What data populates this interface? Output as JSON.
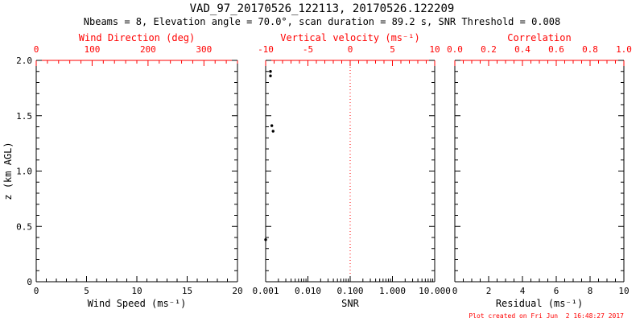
{
  "header": {
    "title": "VAD_97_20170526_122113, 20170526.122209",
    "subtitle": "Nbeams = 8, Elevation angle = 70.0°, scan duration = 89.2 s, SNR Threshold = 0.008"
  },
  "footer": {
    "created": "Plot created on Fri Jun  2 16:48:27 2017"
  },
  "colors": {
    "axis": "#000000",
    "top_axis": "#ff0000",
    "background": "#ffffff",
    "points": "#000000",
    "ref_line": "#ff0000"
  },
  "chart_data": [
    {
      "type": "scatter",
      "panel": "wind-speed",
      "xlabel": "Wind Speed (ms⁻¹)",
      "xlim": [
        0,
        20
      ],
      "xticks": [
        0,
        5,
        10,
        15,
        20
      ],
      "xtick_labels": [
        "0",
        "5",
        "10",
        "15",
        "20"
      ],
      "xminor_step": 1,
      "top_label": "Wind Direction (deg)",
      "top_xlim": [
        0,
        360
      ],
      "top_ticks": [
        0,
        100,
        200,
        300
      ],
      "top_tick_labels": [
        "0",
        "100",
        "200",
        "300"
      ],
      "top_minor_step": 20,
      "ylabel": "z (km AGL)",
      "ylim": [
        0,
        2.0
      ],
      "yticks": [
        0,
        0.5,
        1.0,
        1.5,
        2.0
      ],
      "ytick_labels": [
        "0",
        "0.5",
        "1.0",
        "1.5",
        "2.0"
      ],
      "yminor_step": 0.1,
      "grid": false,
      "points": []
    },
    {
      "type": "scatter",
      "panel": "snr",
      "xlabel": "SNR",
      "xscale": "log",
      "xlim": [
        0.001,
        10
      ],
      "xticks": [
        0.001,
        0.01,
        0.1,
        1,
        10
      ],
      "xtick_labels": [
        "0.001",
        "0.010",
        "0.100",
        "1.000",
        "10.000"
      ],
      "top_label": "Vertical velocity (ms⁻¹)",
      "top_xlim": [
        -10,
        10
      ],
      "top_ticks": [
        -10,
        -5,
        0,
        5,
        10
      ],
      "top_tick_labels": [
        "-10",
        "-5",
        "0",
        "5",
        "10"
      ],
      "top_minor_step": 1,
      "ylim": [
        0,
        2.0
      ],
      "yticks": [
        0,
        0.5,
        1.0,
        1.5,
        2.0
      ],
      "yminor_step": 0.1,
      "ref_line_x": 0.1,
      "ref_line_meaning": "vertical velocity = 0",
      "grid": false,
      "points": [
        {
          "x": 0.0013,
          "y": 1.9
        },
        {
          "x": 0.0013,
          "y": 1.86
        },
        {
          "x": 0.0014,
          "y": 1.41
        },
        {
          "x": 0.0015,
          "y": 1.36
        },
        {
          "x": 0.001,
          "y": 0.38
        }
      ]
    },
    {
      "type": "scatter",
      "panel": "residual",
      "xlabel": "Residual (ms⁻¹)",
      "xlim": [
        0,
        10
      ],
      "xticks": [
        0,
        2,
        4,
        6,
        8,
        10
      ],
      "xtick_labels": [
        "0",
        "2",
        "4",
        "6",
        "8",
        "10"
      ],
      "xminor_step": 0.5,
      "top_label": "Correlation",
      "top_xlim": [
        0.0,
        1.0
      ],
      "top_ticks": [
        0.0,
        0.2,
        0.4,
        0.6,
        0.8,
        1.0
      ],
      "top_tick_labels": [
        "0.0",
        "0.2",
        "0.4",
        "0.6",
        "0.8",
        "1.0"
      ],
      "top_minor_step": 0.05,
      "ylim": [
        0,
        2.0
      ],
      "yticks": [
        0,
        0.5,
        1.0,
        1.5,
        2.0
      ],
      "yminor_step": 0.1,
      "grid": false,
      "points": []
    }
  ]
}
